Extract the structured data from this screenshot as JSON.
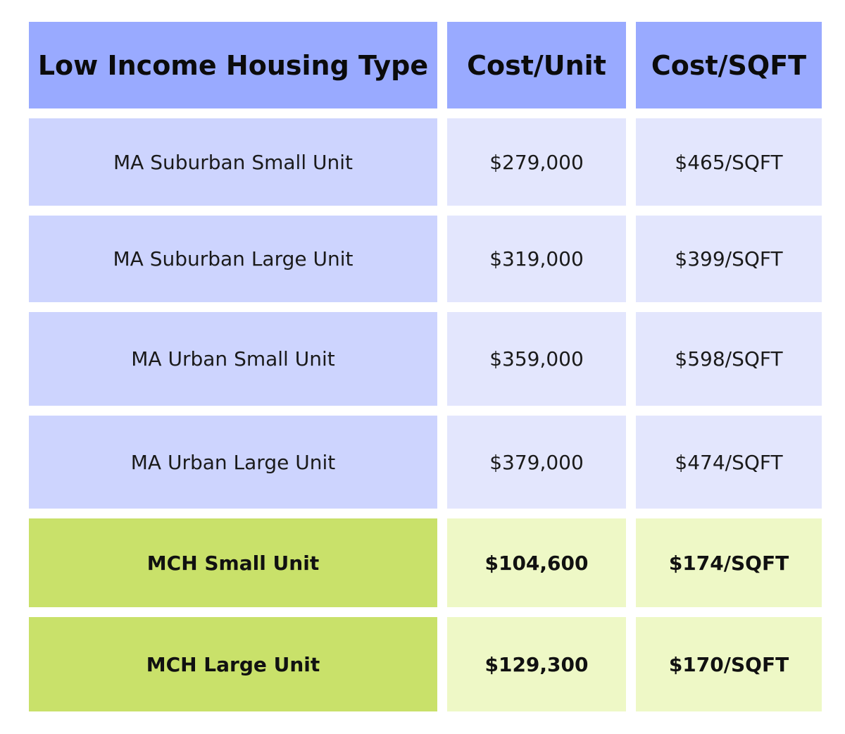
{
  "table": {
    "headers": [
      "Low Income Housing Type",
      "Cost/Unit",
      "Cost/SQFT"
    ],
    "rows": [
      {
        "type": "MA Suburban Small Unit",
        "cost_unit": "$279,000",
        "cost_sqft": "$465/SQFT",
        "group": "ma"
      },
      {
        "type": "MA Suburban Large Unit",
        "cost_unit": "$319,000",
        "cost_sqft": "$399/SQFT",
        "group": "ma"
      },
      {
        "type": "MA Urban Small Unit",
        "cost_unit": "$359,000",
        "cost_sqft": "$598/SQFT",
        "group": "ma"
      },
      {
        "type": "MA Urban Large Unit",
        "cost_unit": "$379,000",
        "cost_sqft": "$474/SQFT",
        "group": "ma"
      },
      {
        "type": "MCH Small Unit",
        "cost_unit": "$104,600",
        "cost_sqft": "$174/SQFT",
        "group": "mch"
      },
      {
        "type": "MCH Large Unit",
        "cost_unit": "$129,300",
        "cost_sqft": "$170/SQFT",
        "group": "mch"
      }
    ]
  },
  "colors": {
    "header": "#99aaff",
    "ma_type": "#cdd4fe",
    "ma_value": "#e3e6fd",
    "mch_type": "#c9e16a",
    "mch_value": "#eef8c6"
  }
}
